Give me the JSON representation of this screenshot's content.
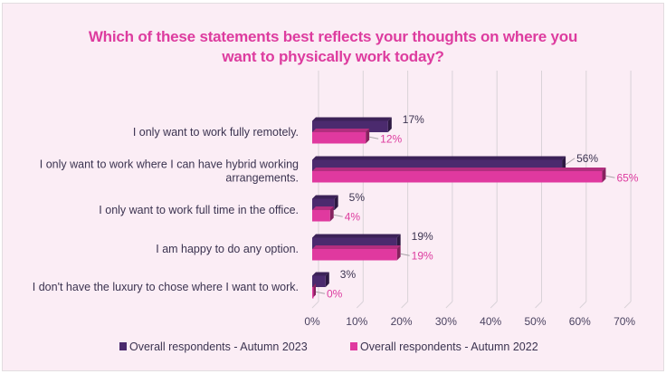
{
  "chart_data": {
    "type": "bar",
    "orientation": "horizontal",
    "style": "3d",
    "title": "Which of these statements best reflects your thoughts on where you want to physically work today?",
    "title_lines": [
      "Which of these statements best reflects your thoughts on where you",
      "want to physically work today?"
    ],
    "categories": [
      [
        "I only want to work fully remotely."
      ],
      [
        "I only want to work where I can have hybrid working",
        "arrangements."
      ],
      [
        "I only want to work full time in the office."
      ],
      [
        "I am happy to do any option."
      ],
      [
        "I don't have the luxury to chose where I want to work."
      ]
    ],
    "series": [
      {
        "name": "Overall respondents - Autumn 2023",
        "color": "#4b2a6e",
        "values": [
          17,
          56,
          5,
          19,
          3
        ]
      },
      {
        "name": "Overall respondents - Autumn 2022",
        "color": "#e0399f",
        "values": [
          12,
          65,
          4,
          19,
          0
        ]
      }
    ],
    "xlim": [
      0,
      70
    ],
    "xticks": [
      "0%",
      "10%",
      "20%",
      "30%",
      "40%",
      "50%",
      "60%",
      "70%"
    ],
    "grid": true,
    "legend": "bottom",
    "value_suffix": "%"
  }
}
